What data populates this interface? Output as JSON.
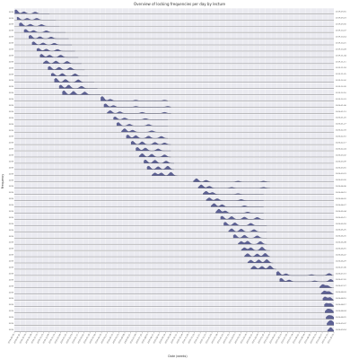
{
  "chart_data": {
    "type": "area",
    "title": "Overview of locking frequencies per day by lecture",
    "xlabel": "Date (weeks)",
    "ylabel": "Frequency",
    "row_labels": [
      "2019-09-16",
      "2019-09-23",
      "2019-09-30",
      "2019-10-07",
      "2019-10-14",
      "2019-10-21",
      "2019-10-28",
      "2019-11-04",
      "2019-11-11",
      "2019-11-18",
      "2019-11-25",
      "2019-12-02",
      "2019-12-09",
      "2019-12-16",
      "2019-12-23",
      "2020-01-06",
      "2020-01-13",
      "2020-01-20",
      "2020-01-27",
      "2020-02-03",
      "2020-02-10",
      "2020-02-17",
      "2020-02-24",
      "2020-03-02",
      "2020-03-09",
      "2020-03-16",
      "2020-03-23",
      "2020-03-30",
      "2020-04-06",
      "2020-04-13",
      "2020-04-20",
      "2020-04-27",
      "2020-05-04",
      "2020-05-11",
      "2020-05-18",
      "2020-05-25",
      "2020-06-01",
      "2020-06-08",
      "2020-06-15",
      "2020-06-22",
      "2020-06-29",
      "2020-07-06",
      "2020-07-13",
      "2020-07-20",
      "2020-07-27",
      "2020-08-03",
      "2020-08-10",
      "2020-08-17",
      "2020-08-24",
      "2020-08-31",
      "2020-09-07",
      "2020-09-14"
    ],
    "x_ticks": [
      "2019-09-16",
      "2019-09-30",
      "2019-10-14",
      "2019-10-28",
      "2019-11-11",
      "2019-11-25",
      "2019-12-09",
      "2019-12-23",
      "2020-01-06",
      "2020-01-20",
      "2020-02-03",
      "2020-02-17",
      "2020-03-02",
      "2020-03-16",
      "2020-03-30",
      "2020-04-13",
      "2020-04-27",
      "2020-05-11",
      "2020-05-25",
      "2020-06-08",
      "2020-06-22",
      "2020-07-06",
      "2020-07-20",
      "2020-08-03",
      "2020-08-17",
      "2020-08-31",
      "2020-09-14",
      "2020-09-28",
      "2020-10-12",
      "2020-10-26",
      "2020-11-09",
      "2020-11-23",
      "2020-12-07",
      "2020-12-21",
      "2021-01-04",
      "2021-01-18",
      "2021-02-01",
      "2021-02-15",
      "2021-03-01",
      "2021-03-15",
      "2021-03-29",
      "2021-04-12",
      "2021-04-26",
      "2021-05-10",
      "2021-05-24",
      "2021-06-07",
      "2021-06-21",
      "2021-07-05",
      "2021-07-19",
      "2021-08-02",
      "2021-08-16",
      "2021-08-30",
      "2021-09-13",
      "2021-09-27",
      "2021-10-11",
      "2021-10-25"
    ],
    "y_tick_label": "2019",
    "series": [
      {
        "start": 0.001,
        "peaks": [
          [
            0.005,
            0.7
          ],
          [
            0.03,
            0.35
          ],
          [
            0.065,
            0.3
          ]
        ],
        "end": 0.11
      },
      {
        "start": 0.008,
        "peaks": [
          [
            0.01,
            0.5
          ],
          [
            0.04,
            0.3
          ],
          [
            0.07,
            0.3
          ]
        ],
        "end": 0.13
      },
      {
        "start": 0.015,
        "peaks": [
          [
            0.02,
            0.6
          ],
          [
            0.05,
            0.35
          ],
          [
            0.085,
            0.3
          ]
        ],
        "end": 0.14
      },
      {
        "start": 0.03,
        "peaks": [
          [
            0.035,
            0.55
          ],
          [
            0.06,
            0.35
          ],
          [
            0.1,
            0.3
          ]
        ],
        "end": 0.16
      },
      {
        "start": 0.045,
        "peaks": [
          [
            0.05,
            0.6
          ],
          [
            0.08,
            0.35
          ],
          [
            0.115,
            0.3
          ]
        ],
        "end": 0.17
      },
      {
        "start": 0.055,
        "peaks": [
          [
            0.06,
            0.55
          ],
          [
            0.09,
            0.35
          ],
          [
            0.125,
            0.3
          ]
        ],
        "end": 0.18
      },
      {
        "start": 0.07,
        "peaks": [
          [
            0.075,
            0.5
          ],
          [
            0.1,
            0.35
          ],
          [
            0.135,
            0.3
          ]
        ],
        "end": 0.19
      },
      {
        "start": 0.08,
        "peaks": [
          [
            0.085,
            0.55
          ],
          [
            0.11,
            0.4
          ],
          [
            0.145,
            0.4
          ]
        ],
        "end": 0.2
      },
      {
        "start": 0.09,
        "peaks": [
          [
            0.1,
            0.5
          ],
          [
            0.13,
            0.45
          ],
          [
            0.165,
            0.4
          ]
        ],
        "end": 0.21
      },
      {
        "start": 0.105,
        "peaks": [
          [
            0.11,
            0.6
          ],
          [
            0.14,
            0.45
          ],
          [
            0.175,
            0.4
          ]
        ],
        "end": 0.22
      },
      {
        "start": 0.115,
        "peaks": [
          [
            0.12,
            0.5
          ],
          [
            0.15,
            0.45
          ],
          [
            0.19,
            0.4
          ]
        ],
        "end": 0.23
      },
      {
        "start": 0.125,
        "peaks": [
          [
            0.13,
            0.7
          ],
          [
            0.16,
            0.5
          ],
          [
            0.2,
            0.45
          ]
        ],
        "end": 0.25
      },
      {
        "start": 0.14,
        "peaks": [
          [
            0.145,
            0.6
          ],
          [
            0.17,
            0.6
          ],
          [
            0.21,
            0.4
          ]
        ],
        "end": 0.26
      },
      {
        "start": 0.15,
        "peaks": [
          [
            0.155,
            0.7
          ],
          [
            0.185,
            0.6
          ],
          [
            0.22,
            0.5
          ]
        ],
        "end": 0.27
      },
      {
        "start": 0.27,
        "peaks": [
          [
            0.275,
            0.8
          ],
          [
            0.3,
            0.3
          ],
          [
            0.38,
            0.15
          ],
          [
            0.47,
            0.15
          ]
        ],
        "end": 0.48
      },
      {
        "start": 0.28,
        "peaks": [
          [
            0.285,
            0.6
          ],
          [
            0.31,
            0.3
          ],
          [
            0.38,
            0.15
          ],
          [
            0.48,
            0.15
          ]
        ],
        "end": 0.49
      },
      {
        "start": 0.29,
        "peaks": [
          [
            0.3,
            0.5
          ],
          [
            0.33,
            0.3
          ],
          [
            0.4,
            0.2
          ],
          [
            0.47,
            0.2
          ]
        ],
        "end": 0.49
      },
      {
        "start": 0.31,
        "peaks": [
          [
            0.315,
            0.5
          ],
          [
            0.345,
            0.3
          ],
          [
            0.41,
            0.2
          ]
        ],
        "end": 0.48
      },
      {
        "start": 0.32,
        "peaks": [
          [
            0.325,
            0.6
          ],
          [
            0.36,
            0.3
          ],
          [
            0.42,
            0.25
          ]
        ],
        "end": 0.48
      },
      {
        "start": 0.335,
        "peaks": [
          [
            0.345,
            0.6
          ],
          [
            0.37,
            0.35
          ],
          [
            0.43,
            0.25
          ]
        ],
        "end": 0.48
      },
      {
        "start": 0.35,
        "peaks": [
          [
            0.355,
            0.6
          ],
          [
            0.38,
            0.5
          ],
          [
            0.42,
            0.4
          ],
          [
            0.46,
            0.35
          ]
        ],
        "end": 0.48
      },
      {
        "start": 0.365,
        "peaks": [
          [
            0.37,
            0.6
          ],
          [
            0.4,
            0.5
          ],
          [
            0.44,
            0.4
          ],
          [
            0.47,
            0.3
          ]
        ],
        "end": 0.49
      },
      {
        "start": 0.38,
        "peaks": [
          [
            0.385,
            0.6
          ],
          [
            0.41,
            0.5
          ],
          [
            0.45,
            0.35
          ]
        ],
        "end": 0.49
      },
      {
        "start": 0.39,
        "peaks": [
          [
            0.4,
            0.6
          ],
          [
            0.43,
            0.5
          ],
          [
            0.47,
            0.4
          ]
        ],
        "end": 0.49
      },
      {
        "start": 0.405,
        "peaks": [
          [
            0.41,
            0.6
          ],
          [
            0.44,
            0.55
          ],
          [
            0.475,
            0.4
          ]
        ],
        "end": 0.5
      },
      {
        "start": 0.415,
        "peaks": [
          [
            0.42,
            0.6
          ],
          [
            0.45,
            0.5
          ],
          [
            0.48,
            0.6
          ]
        ],
        "end": 0.5
      },
      {
        "start": 0.43,
        "peaks": [
          [
            0.44,
            0.5
          ],
          [
            0.46,
            0.5
          ],
          [
            0.49,
            0.6
          ]
        ],
        "end": 0.51
      },
      {
        "start": 0.56,
        "peaks": [
          [
            0.57,
            0.6
          ],
          [
            0.6,
            0.3
          ],
          [
            0.7,
            0.15
          ],
          [
            0.78,
            0.15
          ]
        ],
        "end": 0.8
      },
      {
        "start": 0.575,
        "peaks": [
          [
            0.585,
            0.6
          ],
          [
            0.61,
            0.35
          ],
          [
            0.68,
            0.15
          ],
          [
            0.78,
            0.15
          ]
        ],
        "end": 0.8
      },
      {
        "start": 0.59,
        "peaks": [
          [
            0.6,
            0.55
          ],
          [
            0.62,
            0.35
          ],
          [
            0.7,
            0.15
          ]
        ],
        "end": 0.78
      },
      {
        "start": 0.6,
        "peaks": [
          [
            0.61,
            0.5
          ],
          [
            0.635,
            0.35
          ],
          [
            0.71,
            0.2
          ]
        ],
        "end": 0.78
      },
      {
        "start": 0.615,
        "peaks": [
          [
            0.625,
            0.6
          ],
          [
            0.65,
            0.4
          ],
          [
            0.72,
            0.2
          ]
        ],
        "end": 0.78
      },
      {
        "start": 0.63,
        "peaks": [
          [
            0.64,
            0.7
          ],
          [
            0.66,
            0.4
          ],
          [
            0.73,
            0.2
          ]
        ],
        "end": 0.78
      },
      {
        "start": 0.645,
        "peaks": [
          [
            0.65,
            0.55
          ],
          [
            0.68,
            0.5
          ],
          [
            0.72,
            0.4
          ],
          [
            0.76,
            0.35
          ]
        ],
        "end": 0.78
      },
      {
        "start": 0.655,
        "peaks": [
          [
            0.66,
            0.6
          ],
          [
            0.69,
            0.5
          ],
          [
            0.74,
            0.4
          ]
        ],
        "end": 0.79
      },
      {
        "start": 0.67,
        "peaks": [
          [
            0.68,
            0.55
          ],
          [
            0.71,
            0.5
          ],
          [
            0.75,
            0.4
          ]
        ],
        "end": 0.79
      },
      {
        "start": 0.685,
        "peaks": [
          [
            0.69,
            0.6
          ],
          [
            0.72,
            0.5
          ],
          [
            0.76,
            0.4
          ]
        ],
        "end": 0.79
      },
      {
        "start": 0.7,
        "peaks": [
          [
            0.71,
            0.5
          ],
          [
            0.73,
            0.55
          ],
          [
            0.77,
            0.5
          ]
        ],
        "end": 0.79
      },
      {
        "start": 0.71,
        "peaks": [
          [
            0.72,
            0.5
          ],
          [
            0.74,
            0.5
          ],
          [
            0.775,
            0.6
          ]
        ],
        "end": 0.8
      },
      {
        "start": 0.72,
        "peaks": [
          [
            0.73,
            0.55
          ],
          [
            0.76,
            0.5
          ],
          [
            0.785,
            0.6
          ]
        ],
        "end": 0.8
      },
      {
        "start": 0.73,
        "peaks": [
          [
            0.74,
            0.5
          ],
          [
            0.765,
            0.55
          ],
          [
            0.79,
            0.6
          ]
        ],
        "end": 0.81
      },
      {
        "start": 0.74,
        "peaks": [
          [
            0.75,
            0.55
          ],
          [
            0.775,
            0.5
          ],
          [
            0.8,
            0.6
          ]
        ],
        "end": 0.82
      },
      {
        "start": 0.82,
        "peaks": [
          [
            0.825,
            0.7
          ],
          [
            0.85,
            0.3
          ],
          [
            0.93,
            0.15
          ],
          [
            0.985,
            0.35
          ]
        ],
        "end": 0.995
      },
      {
        "start": 0.83,
        "peaks": [
          [
            0.835,
            0.6
          ],
          [
            0.86,
            0.3
          ],
          [
            0.94,
            0.15
          ],
          [
            0.99,
            0.4
          ]
        ],
        "end": 0.998
      },
      {
        "start": 0.955,
        "peaks": [
          [
            0.965,
            0.6
          ],
          [
            0.98,
            0.4
          ]
        ],
        "end": 0.995
      },
      {
        "start": 0.96,
        "peaks": [
          [
            0.97,
            0.55
          ],
          [
            0.985,
            0.45
          ]
        ],
        "end": 0.997
      },
      {
        "start": 0.965,
        "peaks": [
          [
            0.972,
            0.6
          ],
          [
            0.988,
            0.5
          ]
        ],
        "end": 0.998
      },
      {
        "start": 0.97,
        "peaks": [
          [
            0.976,
            0.55
          ],
          [
            0.99,
            0.5
          ]
        ],
        "end": 0.999
      },
      {
        "start": 0.972,
        "peaks": [
          [
            0.98,
            0.6
          ],
          [
            0.992,
            0.5
          ]
        ],
        "end": 0.999
      },
      {
        "start": 0.975,
        "peaks": [
          [
            0.982,
            0.55
          ],
          [
            0.994,
            0.5
          ]
        ],
        "end": 1.0
      },
      {
        "start": 0.978,
        "peaks": [
          [
            0.985,
            0.6
          ],
          [
            0.995,
            0.6
          ]
        ],
        "end": 1.0
      },
      {
        "start": 0.98,
        "peaks": [
          [
            0.99,
            0.7
          ]
        ],
        "end": 1.0
      }
    ],
    "grid": true,
    "legend": "none",
    "fill_color": "#555a8f",
    "line_color": "#3a3f6e",
    "row_bg": "#eaeaf0",
    "grid_color": "#ffffff"
  }
}
